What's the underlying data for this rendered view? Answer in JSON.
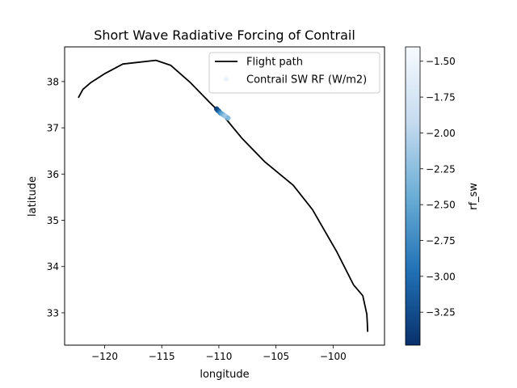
{
  "chart_data": {
    "type": "scatter",
    "title": "Short Wave Radiative Forcing of Contrail",
    "xlabel": "longitude",
    "ylabel": "latitude",
    "xlim": [
      -123.5,
      -95.5
    ],
    "ylim": [
      32.3,
      38.75
    ],
    "x_ticks": [
      -120,
      -115,
      -110,
      -105,
      -100
    ],
    "x_tick_labels": [
      "−120",
      "−115",
      "−110",
      "−105",
      "−100"
    ],
    "y_ticks": [
      33,
      34,
      35,
      36,
      37,
      38
    ],
    "y_tick_labels": [
      "33",
      "34",
      "35",
      "36",
      "37",
      "38"
    ],
    "grid": false,
    "legend_position": "top-right",
    "legend": [
      "Flight path",
      "Contrail SW RF (W/m2)"
    ],
    "series": [
      {
        "name": "Flight path",
        "kind": "line",
        "color": "#000000",
        "points": [
          [
            -122.3,
            37.65
          ],
          [
            -121.9,
            37.83
          ],
          [
            -121.2,
            37.98
          ],
          [
            -120.0,
            38.17
          ],
          [
            -118.4,
            38.38
          ],
          [
            -115.5,
            38.46
          ],
          [
            -114.2,
            38.35
          ],
          [
            -112.5,
            37.98
          ],
          [
            -110.8,
            37.55
          ],
          [
            -109.5,
            37.23
          ],
          [
            -108.0,
            36.78
          ],
          [
            -106.0,
            36.27
          ],
          [
            -103.5,
            35.76
          ],
          [
            -101.8,
            35.23
          ],
          [
            -99.7,
            34.33
          ],
          [
            -98.2,
            33.6
          ],
          [
            -97.4,
            33.37
          ],
          [
            -97.05,
            32.97
          ],
          [
            -97.0,
            32.75
          ],
          [
            -96.98,
            32.6
          ],
          [
            -97.0,
            32.72
          ]
        ]
      },
      {
        "name": "Contrail SW RF (W/m2)",
        "kind": "scatter",
        "colormap": "Blues_r",
        "points": [
          {
            "x": -110.2,
            "y": 37.41,
            "v": -3.45
          },
          {
            "x": -110.1,
            "y": 37.38,
            "v": -3.3
          },
          {
            "x": -110.0,
            "y": 37.36,
            "v": -3.1
          },
          {
            "x": -109.9,
            "y": 37.33,
            "v": -2.85
          },
          {
            "x": -109.8,
            "y": 37.31,
            "v": -2.6
          },
          {
            "x": -109.65,
            "y": 37.29,
            "v": -2.4
          },
          {
            "x": -109.5,
            "y": 37.26,
            "v": -2.2
          },
          {
            "x": -109.35,
            "y": 37.24,
            "v": -2.1
          },
          {
            "x": -109.2,
            "y": 37.21,
            "v": -2.35
          }
        ]
      }
    ],
    "colorbar": {
      "label": "rf_sw",
      "range": [
        -3.48,
        -1.4
      ],
      "ticks": [
        -3.25,
        -3.0,
        -2.75,
        -2.5,
        -2.25,
        -2.0,
        -1.75,
        -1.5
      ],
      "tick_labels": [
        "−3.25",
        "−3.00",
        "−2.75",
        "−2.50",
        "−2.25",
        "−2.00",
        "−1.75",
        "−1.50"
      ],
      "colors": [
        "#08306b",
        "#2171b5",
        "#6baed6",
        "#c6dbef",
        "#f7fbff"
      ]
    }
  }
}
